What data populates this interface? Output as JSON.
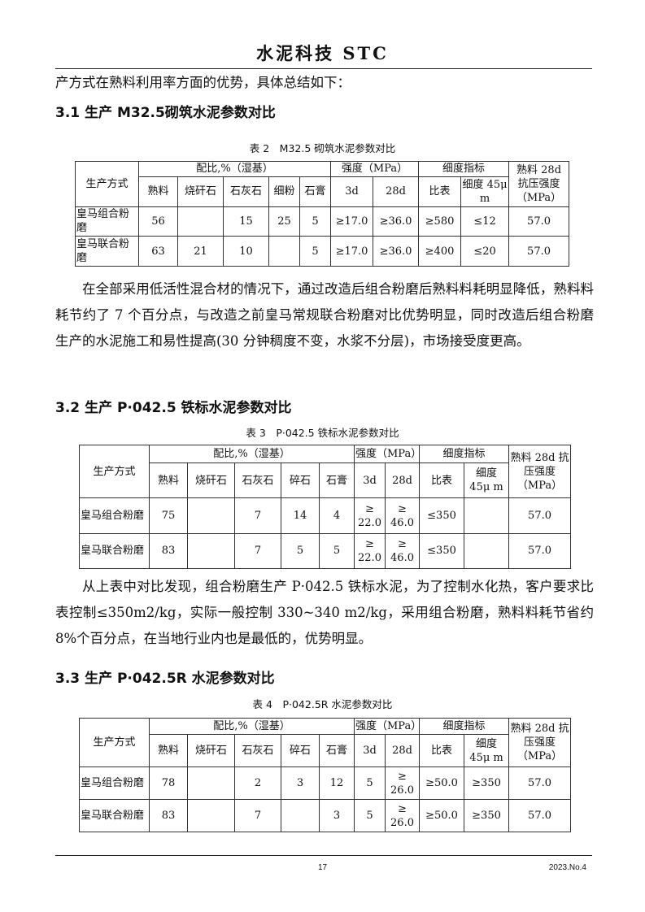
{
  "header": {
    "title": "水泥科技 STC"
  },
  "intro": "产方式在熟料利用率方面的优势，具体总结如下：",
  "sections": [
    {
      "heading": "3.1 生产 M32.5砌筑水泥参数对比",
      "caption": "表 2　M32.5 砌筑水泥参数对比",
      "body": "在全部采用低活性混合材的情况下，通过改造后组合粉磨后熟料料耗明显降低，熟料料耗节约了 7 个百分点，与改造之前皇马常规联合粉磨对比优势明显，同时改造后组合粉磨生产的水泥施工和易性提高(30 分钟稠度不变，水浆不分层)，市场接受度更高。"
    },
    {
      "heading": "3.2 生产 P·042.5 铁标水泥参数对比",
      "caption": "表 3　P·042.5 铁标水泥参数对比",
      "body": "从上表中对比发现，组合粉磨生产 P·042.5 铁标水泥，为了控制水化热，客户要求比表控制≤350m2/kg，实际一般控制 330~340 m2/kg，采用组合粉磨，熟料料耗节省约 8%个百分点，在当地行业内也是最低的，优势明显。"
    },
    {
      "heading": "3.3 生产 P·042.5R 水泥参数对比",
      "caption": "表 4　P·042.5R 水泥参数对比"
    }
  ],
  "tables": [
    {
      "head": {
        "method": "生产方式",
        "ratio": "配比,%（湿基）",
        "strength": "强度（MPa）",
        "fineness": "细度指标",
        "clinker": "熟料 28d 抗压强度（MPa）",
        "cols": [
          "熟料",
          "烧矸石",
          "石灰石",
          "细粉",
          "石膏",
          "3d",
          "28d",
          "比表",
          "细度 45μ m"
        ]
      },
      "rows": [
        [
          "皇马组合粉磨",
          "56",
          "",
          "15",
          "25",
          "5",
          "≥17.0",
          "≥36.0",
          "≥580",
          "≤12",
          "57.0"
        ],
        [
          "皇马联合粉磨",
          "63",
          "21",
          "10",
          "",
          "5",
          "≥17.0",
          "≥36.0",
          "≥400",
          "≤20",
          "57.0"
        ]
      ]
    },
    {
      "head": {
        "method": "生产方式",
        "ratio": "配比,%（湿基）",
        "strength": "强度（MPa）",
        "fineness": "细度指标",
        "clinker": "熟料 28d 抗压强度（MPa）",
        "cols": [
          "熟料",
          "烧矸石",
          "石灰石",
          "碎石",
          "石膏",
          "3d",
          "28d",
          "比表",
          "细度 45μ m"
        ]
      },
      "rows": [
        [
          "皇马组合粉磨",
          "75",
          "",
          "7",
          "14",
          "4",
          "≥ 22.0",
          "≥ 46.0",
          "≤350",
          "",
          "57.0"
        ],
        [
          "皇马联合粉磨",
          "83",
          "",
          "7",
          "5",
          "5",
          "≥ 22.0",
          "≥ 46.0",
          "≤350",
          "",
          "57.0"
        ]
      ]
    },
    {
      "head": {
        "method": "生产方式",
        "ratio": "配比,%（湿基）",
        "strength": "强度（MPa）",
        "fineness": "细度指标",
        "clinker": "熟料 28d 抗压强度（MPa）",
        "cols": [
          "熟料",
          "烧矸石",
          "石灰石",
          "碎石",
          "石膏",
          "3d",
          "28d",
          "比表",
          "细度 45μ m"
        ]
      },
      "rows": [
        [
          "皇马组合粉磨",
          "78",
          "",
          "2",
          "3",
          "12",
          "5",
          "≥ 26.0",
          "≥50.0",
          "≥350",
          "57.0"
        ],
        [
          "皇马联合粉磨",
          "83",
          "",
          "7",
          "",
          "3",
          "5",
          "≥ 26.0",
          "≥50.0",
          "≥350",
          "57.0"
        ]
      ]
    }
  ],
  "footer": {
    "page": "17",
    "issue": "2023.No.4"
  }
}
